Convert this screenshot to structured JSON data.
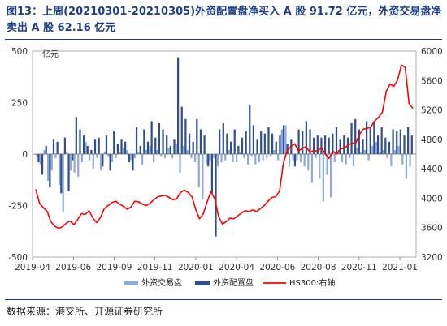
{
  "header": {
    "title": "图13：上周(20210301-20210305)外资配置盘净买入 A 股 91.72 亿元，外资交易盘净卖出 A 股 62.16 亿元"
  },
  "footer": {
    "source": "数据来源：港交所、开源证券研究所"
  },
  "chart_data": {
    "type": "bar",
    "unit_label": "亿元",
    "x_ticks": [
      "2019-04",
      "2019-06",
      "2019-09",
      "2019-11",
      "2020-01",
      "2020-04",
      "2020-06",
      "2020-08",
      "2020-11",
      "2021-01"
    ],
    "y_left": {
      "range": [
        -500,
        500
      ],
      "ticks": [
        -500,
        -250,
        0,
        250,
        500
      ]
    },
    "y_right": {
      "range": [
        3200,
        6000
      ],
      "ticks": [
        3200,
        3600,
        4000,
        4400,
        4800,
        5200,
        5600,
        6000
      ]
    },
    "colors": {
      "trading": "#8eaadb",
      "allocation": "#2f4f8f",
      "hs300": "#ff0000"
    },
    "legend": [
      "外资交易盘",
      "外资配置盘",
      "HS300:右轴"
    ],
    "series": [
      {
        "name": "外资交易盘",
        "axis": "left",
        "values": [
          -10,
          -50,
          20,
          -130,
          -80,
          -20,
          -150,
          -280,
          10,
          -80,
          -90,
          -110,
          -40,
          60,
          -30,
          -70,
          -20,
          -80,
          10,
          -10,
          -40,
          -20,
          10,
          30,
          20,
          -30,
          -20,
          10,
          -50,
          20,
          40,
          -40,
          20,
          -10,
          -20,
          30,
          -20,
          50,
          -90,
          40,
          20,
          -20,
          -40,
          -160,
          -220,
          -50,
          -30,
          -20,
          -60,
          -40,
          -30,
          20,
          -40,
          -40,
          10,
          -20,
          -50,
          -10,
          -50,
          -40,
          -30,
          -20,
          -10,
          20,
          -30,
          120,
          140,
          -60,
          -30,
          -30,
          -40,
          -60,
          -80,
          -140,
          -20,
          -120,
          -230,
          -100,
          -210,
          -40,
          20,
          -40,
          -50,
          -20,
          -60,
          30,
          10,
          20,
          -30,
          40,
          60,
          10,
          20,
          -20,
          -60,
          20,
          40,
          -50,
          -120,
          -60
        ]
      },
      {
        "name": "外资配置盘",
        "axis": "left",
        "values": [
          -40,
          -100,
          40,
          -160,
          70,
          60,
          -190,
          80,
          -180,
          -30,
          180,
          120,
          90,
          40,
          20,
          70,
          80,
          -60,
          90,
          -80,
          110,
          50,
          70,
          60,
          -40,
          -80,
          130,
          40,
          120,
          60,
          160,
          80,
          150,
          120,
          90,
          40,
          70,
          470,
          230,
          170,
          100,
          60,
          170,
          120,
          90,
          -60,
          -190,
          -400,
          120,
          150,
          100,
          60,
          120,
          40,
          80,
          110,
          240,
          140,
          70,
          110,
          100,
          130,
          100,
          60,
          90,
          140,
          50,
          70,
          -60,
          120,
          110,
          160,
          120,
          80,
          90,
          80,
          90,
          80,
          100,
          130,
          70,
          90,
          80,
          150,
          170,
          120,
          70,
          160,
          130,
          160,
          90,
          130,
          80,
          60,
          120,
          110,
          120,
          90,
          130,
          90
        ]
      },
      {
        "name": "HS300:右轴",
        "axis": "right",
        "values": [
          4120,
          3930,
          3870,
          3820,
          3680,
          3620,
          3590,
          3610,
          3660,
          3690,
          3640,
          3710,
          3790,
          3780,
          3830,
          3730,
          3670,
          3740,
          3860,
          3900,
          3940,
          3960,
          3920,
          3890,
          3850,
          3880,
          3960,
          3950,
          3920,
          3900,
          3930,
          3980,
          4020,
          4030,
          4040,
          4010,
          3980,
          3990,
          4080,
          4110,
          4080,
          4020,
          3850,
          3720,
          3790,
          3950,
          4090,
          3990,
          3750,
          3650,
          3680,
          3730,
          3720,
          3760,
          3800,
          3830,
          3820,
          3840,
          3820,
          3860,
          3900,
          3960,
          4010,
          4020,
          4100,
          4470,
          4650,
          4700,
          4740,
          4640,
          4680,
          4700,
          4620,
          4650,
          4640,
          4690,
          4600,
          4540,
          4640,
          4600,
          4670,
          4680,
          4720,
          4750,
          4750,
          4870,
          4940,
          4950,
          4970,
          5050,
          5100,
          5170,
          5450,
          5550,
          5520,
          5610,
          5810,
          5780,
          5290,
          5220
        ]
      }
    ]
  }
}
